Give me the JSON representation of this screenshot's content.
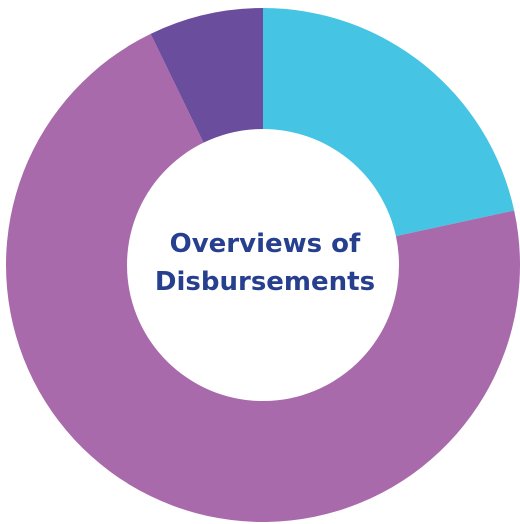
{
  "chart_data": {
    "type": "donut",
    "title": "Overviews of Disbursements",
    "categories": [
      null,
      null,
      null
    ],
    "values": [
      21.6,
      71.2,
      7.2
    ],
    "colors": [
      "#45c5e3",
      "#a86aab",
      "#6b4d9e"
    ]
  }
}
